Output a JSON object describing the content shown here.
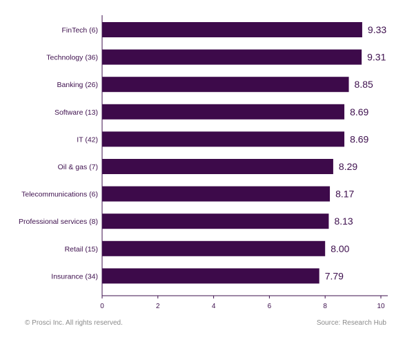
{
  "colors": {
    "bar": "#3d0a4a",
    "text": "#3d0f4d",
    "axis": "#3d0f4d",
    "footer": "#8a8a8a"
  },
  "chart_data": {
    "type": "bar",
    "orientation": "horizontal",
    "categories": [
      "FinTech (6)",
      "Technology (36)",
      "Banking (26)",
      "Software (13)",
      "IT (42)",
      "Oil & gas (7)",
      "Telecommunications (6)",
      "Professional services (8)",
      "Retail (15)",
      "Insurance (34)"
    ],
    "values": [
      9.33,
      9.31,
      8.85,
      8.69,
      8.69,
      8.29,
      8.17,
      8.13,
      8.0,
      7.79
    ],
    "value_labels": [
      "9.33",
      "9.31",
      "8.85",
      "8.69",
      "8.69",
      "8.29",
      "8.17",
      "8.13",
      "8.00",
      "7.79"
    ],
    "xlim": [
      0,
      10
    ],
    "xticks": [
      0,
      2,
      4,
      6,
      8,
      10
    ],
    "xtick_labels": [
      "0",
      "2",
      "4",
      "6",
      "8",
      "10"
    ],
    "title": "",
    "xlabel": "",
    "ylabel": "",
    "grid": false,
    "legend": "none"
  },
  "footer": {
    "copyright": "© Prosci Inc. All rights reserved.",
    "source": "Source: Research Hub"
  }
}
